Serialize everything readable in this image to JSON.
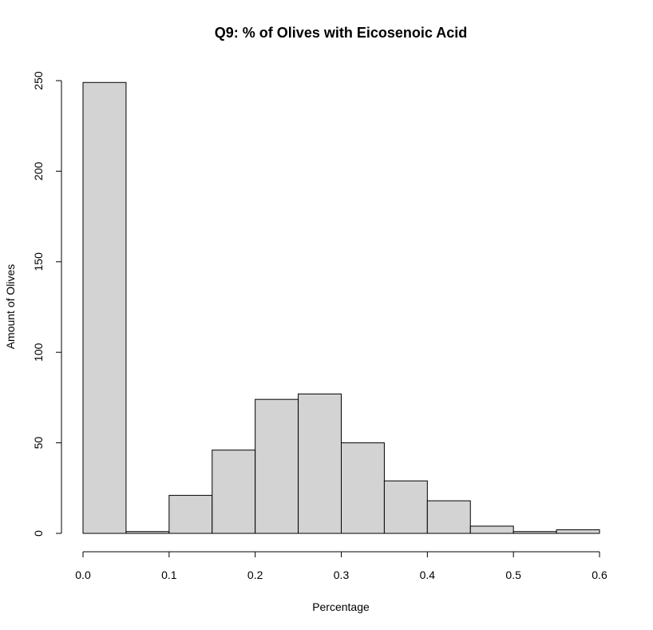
{
  "chart_data": {
    "type": "bar",
    "subtype": "histogram",
    "title": "Q9: % of Olives with Eicosenoic Acid",
    "xlabel": "Percentage",
    "ylabel": "Amount of Olives",
    "bins": [
      [
        0.0,
        0.05
      ],
      [
        0.05,
        0.1
      ],
      [
        0.1,
        0.15
      ],
      [
        0.15,
        0.2
      ],
      [
        0.2,
        0.25
      ],
      [
        0.25,
        0.3
      ],
      [
        0.3,
        0.35
      ],
      [
        0.35,
        0.4
      ],
      [
        0.4,
        0.45
      ],
      [
        0.45,
        0.5
      ],
      [
        0.5,
        0.55
      ],
      [
        0.55,
        0.6
      ]
    ],
    "values": [
      249,
      1,
      21,
      46,
      74,
      77,
      50,
      29,
      18,
      4,
      1,
      2
    ],
    "xlim": [
      0.0,
      0.6
    ],
    "ylim": [
      0,
      250
    ],
    "x_ticks": [
      "0.0",
      "0.1",
      "0.2",
      "0.3",
      "0.4",
      "0.5",
      "0.6"
    ],
    "x_tick_values": [
      0.0,
      0.1,
      0.2,
      0.3,
      0.4,
      0.5,
      0.6
    ],
    "y_ticks": [
      "0",
      "50",
      "100",
      "150",
      "200",
      "250"
    ],
    "y_tick_values": [
      0,
      50,
      100,
      150,
      200,
      250
    ],
    "grid": false,
    "bar_fill": "#d3d3d3",
    "bar_stroke": "#000000"
  }
}
